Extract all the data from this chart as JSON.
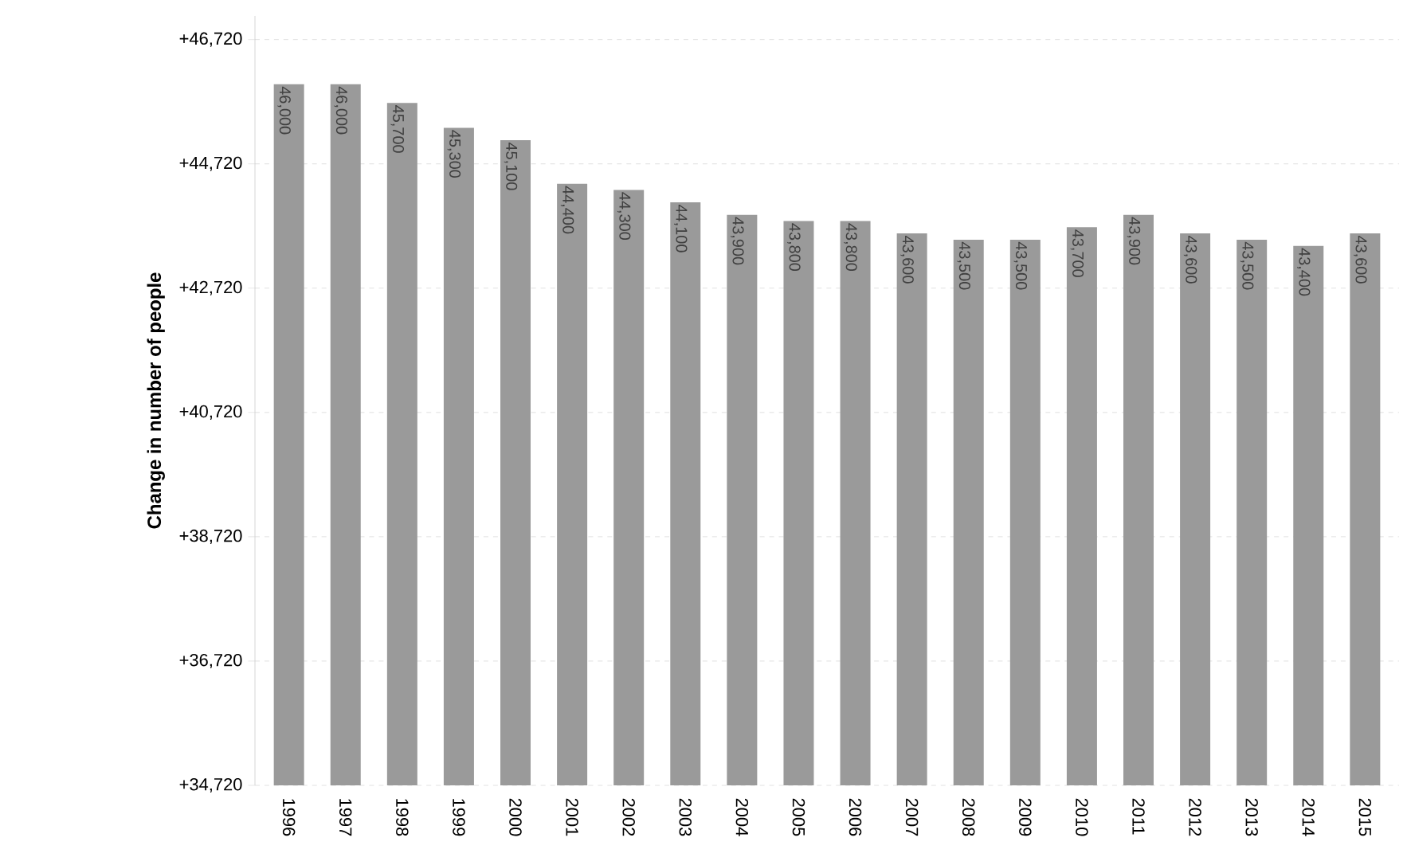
{
  "chart_data": {
    "type": "bar",
    "ylabel": "Change in number of people",
    "categories": [
      "1996",
      "1997",
      "1998",
      "1999",
      "2000",
      "2001",
      "2002",
      "2003",
      "2004",
      "2005",
      "2006",
      "2007",
      "2008",
      "2009",
      "2010",
      "2011",
      "2012",
      "2013",
      "2014",
      "2015"
    ],
    "values": [
      46000,
      46000,
      45700,
      45300,
      45100,
      44400,
      44300,
      44100,
      43900,
      43800,
      43800,
      43600,
      43500,
      43500,
      43700,
      43900,
      43600,
      43500,
      43400,
      43600
    ],
    "value_labels": [
      "46,000",
      "46,000",
      "45,700",
      "45,300",
      "45,100",
      "44,400",
      "44,300",
      "44,100",
      "43,900",
      "43,800",
      "43,800",
      "43,600",
      "43,500",
      "43,500",
      "43,700",
      "43,900",
      "43,600",
      "43,500",
      "43,400",
      "43,600"
    ],
    "color": "#9a9a9a",
    "ylim": [
      34720,
      47100
    ],
    "yticks": [
      {
        "value": 34720,
        "label": "+34,720"
      },
      {
        "value": 36720,
        "label": "+36,720"
      },
      {
        "value": 38720,
        "label": "+38,720"
      },
      {
        "value": 40720,
        "label": "+40,720"
      },
      {
        "value": 42720,
        "label": "+42,720"
      },
      {
        "value": 44720,
        "label": "+44,720"
      },
      {
        "value": 46720,
        "label": "+46,720"
      }
    ],
    "grid": "y"
  }
}
